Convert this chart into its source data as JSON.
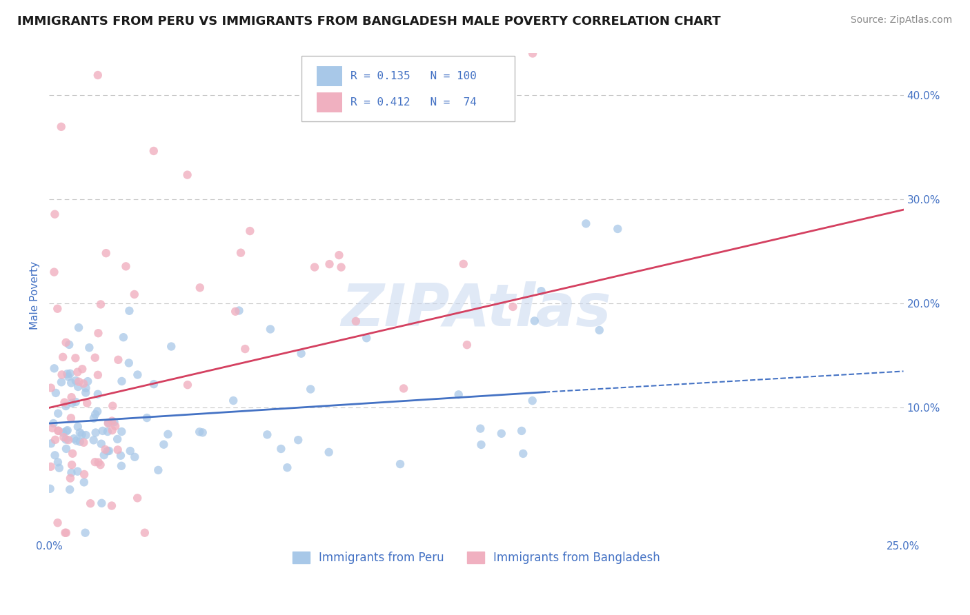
{
  "title": "IMMIGRANTS FROM PERU VS IMMIGRANTS FROM BANGLADESH MALE POVERTY CORRELATION CHART",
  "source": "Source: ZipAtlas.com",
  "ylabel": "Male Poverty",
  "xlim": [
    0.0,
    0.25
  ],
  "ylim": [
    -0.025,
    0.44
  ],
  "yticks": [
    0.0,
    0.1,
    0.2,
    0.3,
    0.4
  ],
  "right_ytick_labels": [
    "",
    "10.0%",
    "20.0%",
    "30.0%",
    "40.0%"
  ],
  "xticks": [
    0.0,
    0.25
  ],
  "xtick_labels": [
    "0.0%",
    "25.0%"
  ],
  "peru_dot_color": "#a8c8e8",
  "bangladesh_dot_color": "#f0b0c0",
  "trend_peru_color": "#4472c4",
  "trend_bangladesh_color": "#d44060",
  "watermark": "ZIPAtlas",
  "watermark_color": "#c8d8f0",
  "title_fontsize": 13,
  "source_fontsize": 10,
  "axis_color": "#4472c4",
  "grid_color": "#c8c8c8",
  "background_color": "#ffffff",
  "peru_R": 0.135,
  "peru_N": 100,
  "bangladesh_R": 0.412,
  "bangladesh_N": 74,
  "seed": 12345
}
